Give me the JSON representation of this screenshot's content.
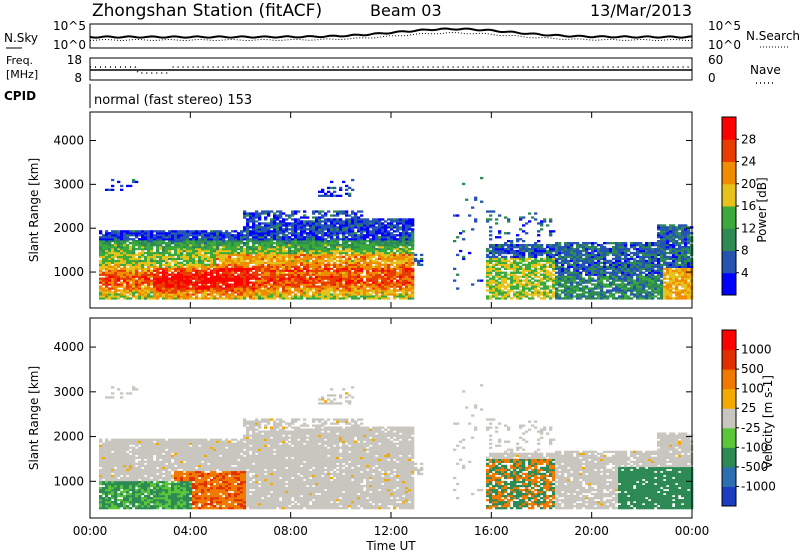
{
  "header": {
    "station": "Zhongshan Station (fitACF)",
    "beam": "Beam 03",
    "date": "13/Mar/2013"
  },
  "noise_panel": {
    "left_label": "N.Sky",
    "right_label": "N.Search",
    "left_ticks": [
      "10^5",
      "10^0"
    ],
    "right_ticks": [
      "10^5",
      "10^0"
    ]
  },
  "freq_panel": {
    "left_label_top": "Freq.",
    "left_label_bottom": "[MHz]",
    "left_ticks": [
      "18",
      "8"
    ],
    "right_label": "Nave",
    "right_ticks": [
      "60",
      "0"
    ]
  },
  "cpid": {
    "label": "CPID",
    "mode": "normal (fast stereo) 153"
  },
  "time_axis": {
    "label": "Time UT",
    "ticks": [
      "00:00",
      "04:00",
      "08:00",
      "12:00",
      "16:00",
      "20:00",
      "00:00"
    ]
  },
  "chart_data": [
    {
      "type": "heatmap",
      "quantity": "power",
      "ylabel": "Slant Range [km]",
      "yticks": [
        1000,
        2000,
        3000,
        4000
      ],
      "ylim": [
        180,
        4650
      ],
      "xlim_hours": [
        0,
        24
      ],
      "colorbar_label": "Power [dB]",
      "colorbar_ticks": [
        "4",
        "8",
        "12",
        "16",
        "20",
        "24",
        "28"
      ],
      "colors": [
        "#0000ff",
        "#2455b0",
        "#2e8a55",
        "#3aaa3a",
        "#e6c21a",
        "#f08c00",
        "#e83c00",
        "#ff0000"
      ]
    },
    {
      "type": "heatmap",
      "quantity": "velocity",
      "ylabel": "Slant Range [km]",
      "yticks": [
        1000,
        2000,
        3000,
        4000
      ],
      "ylim": [
        180,
        4650
      ],
      "xlim_hours": [
        0,
        24
      ],
      "colorbar_label": "Velocity [m s-1]",
      "colorbar_ticks": [
        "1000",
        "500",
        "100",
        "25",
        "-25",
        "-100",
        "-500",
        "-1000"
      ],
      "colors": [
        "#1c3dbf",
        "#2b6fb0",
        "#2e8a55",
        "#5cc63a",
        "#c8c6be",
        "#f2a900",
        "#f07a00",
        "#e03000",
        "#ff0000"
      ]
    }
  ]
}
